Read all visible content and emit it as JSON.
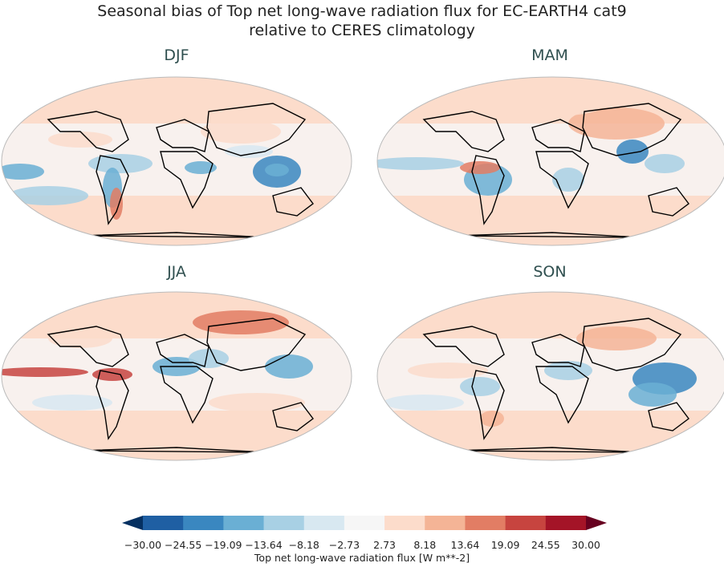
{
  "chart_data": {
    "type": "heatmap",
    "title": "Seasonal bias of Top net long-wave radiation flux for EC-EARTH4 cat9",
    "subtitle": "relative to CERES climatology",
    "panels": [
      {
        "name": "DJF"
      },
      {
        "name": "MAM"
      },
      {
        "name": "JJA"
      },
      {
        "name": "SON"
      }
    ],
    "projection": "Robinson",
    "colorbar": {
      "label": "Top net long-wave radiation flux [W m**-2]",
      "ticks": [
        "−30.00",
        "−24.55",
        "−19.09",
        "−13.64",
        "−8.18",
        "−2.73",
        "2.73",
        "8.18",
        "13.64",
        "19.09",
        "24.55",
        "30.00"
      ],
      "levels": [
        -30.0,
        -24.55,
        -19.09,
        -13.64,
        -8.18,
        -2.73,
        2.73,
        8.18,
        13.64,
        19.09,
        24.55,
        30.0
      ],
      "extend": "both",
      "colors": [
        "#053061",
        "#1f5fa3",
        "#3a87c0",
        "#6aafd4",
        "#a8d0e4",
        "#d8e8f1",
        "#f6f6f6",
        "#fcdccb",
        "#f4b496",
        "#e27d64",
        "#c7443f",
        "#a41427",
        "#67001f"
      ]
    }
  }
}
